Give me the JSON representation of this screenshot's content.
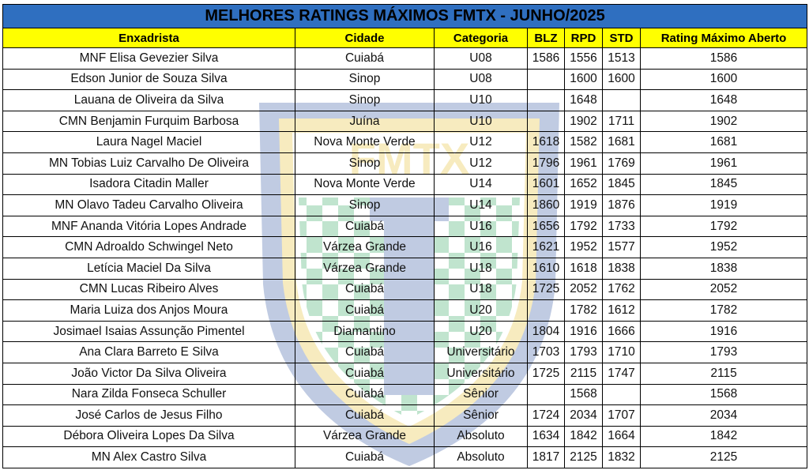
{
  "title": "MELHORES RATINGS MÁXIMOS FMTX - JUNHO/2025",
  "watermark_text": "FMTX",
  "columns": [
    "Enxadrista",
    "Cidade",
    "Categoria",
    "BLZ",
    "RPD",
    "STD",
    "Rating Máximo Aberto"
  ],
  "rows": [
    {
      "name": "MNF Elisa Gevezier Silva",
      "city": "Cuiabá",
      "category": "U08",
      "blz": "1586",
      "rpd": "1556",
      "std": "1513",
      "max": "1586"
    },
    {
      "name": "Edson Junior de Souza Silva",
      "city": "Sinop",
      "category": "U08",
      "blz": "",
      "rpd": "1600",
      "std": "1600",
      "max": "1600"
    },
    {
      "name": "Lauana de Oliveira da Silva",
      "city": "Sinop",
      "category": "U10",
      "blz": "",
      "rpd": "1648",
      "std": "",
      "max": "1648"
    },
    {
      "name": "CMN Benjamin Furquim Barbosa",
      "city": "Juína",
      "category": "U10",
      "blz": "",
      "rpd": "1902",
      "std": "1711",
      "max": "1902"
    },
    {
      "name": "Laura Nagel Maciel",
      "city": "Nova Monte Verde",
      "category": "U12",
      "blz": "1618",
      "rpd": "1582",
      "std": "1681",
      "max": "1681"
    },
    {
      "name": "MN Tobias Luiz Carvalho De Oliveira",
      "city": "Sinop",
      "category": "U12",
      "blz": "1796",
      "rpd": "1961",
      "std": "1769",
      "max": "1961"
    },
    {
      "name": "Isadora Citadin Maller",
      "city": "Nova Monte Verde",
      "category": "U14",
      "blz": "1601",
      "rpd": "1652",
      "std": "1845",
      "max": "1845"
    },
    {
      "name": "MN Olavo Tadeu Carvalho Oliveira",
      "city": "Sinop",
      "category": "U14",
      "blz": "1860",
      "rpd": "1919",
      "std": "1876",
      "max": "1919"
    },
    {
      "name": "MNF Ananda Vitória Lopes Andrade",
      "city": "Cuiabá",
      "category": "U16",
      "blz": "1656",
      "rpd": "1792",
      "std": "1733",
      "max": "1792"
    },
    {
      "name": "CMN Adroaldo Schwingel Neto",
      "city": "Várzea Grande",
      "category": "U16",
      "blz": "1621",
      "rpd": "1952",
      "std": "1577",
      "max": "1952"
    },
    {
      "name": "Letícia Maciel Da Silva",
      "city": "Várzea Grande",
      "category": "U18",
      "blz": "1610",
      "rpd": "1618",
      "std": "1838",
      "max": "1838"
    },
    {
      "name": "CMN Lucas Ribeiro Alves",
      "city": "Cuiabá",
      "category": "U18",
      "blz": "1725",
      "rpd": "2052",
      "std": "1762",
      "max": "2052"
    },
    {
      "name": "Maria Luiza dos Anjos Moura",
      "city": "Cuiabá",
      "category": "U20",
      "blz": "",
      "rpd": "1782",
      "std": "1612",
      "max": "1782"
    },
    {
      "name": "Josimael Isaias Assunção Pimentel",
      "city": "Diamantino",
      "category": "U20",
      "blz": "1804",
      "rpd": "1916",
      "std": "1666",
      "max": "1916"
    },
    {
      "name": "Ana Clara Barreto E Silva",
      "city": "Cuiabá",
      "category": "Universitário",
      "blz": "1703",
      "rpd": "1793",
      "std": "1710",
      "max": "1793"
    },
    {
      "name": "João Victor Da Silva Oliveira",
      "city": "Cuiabá",
      "category": "Universitário",
      "blz": "1725",
      "rpd": "2115",
      "std": "1747",
      "max": "2115"
    },
    {
      "name": "Nara Zilda Fonseca Schuller",
      "city": "Cuiabá",
      "category": "Sênior",
      "blz": "",
      "rpd": "1568",
      "std": "",
      "max": "1568"
    },
    {
      "name": "José Carlos de Jesus Filho",
      "city": "Cuiabá",
      "category": "Sênior",
      "blz": "1724",
      "rpd": "2034",
      "std": "1707",
      "max": "2034"
    },
    {
      "name": "Débora Oliveira Lopes Da Silva",
      "city": "Várzea Grande",
      "category": "Absoluto",
      "blz": "1634",
      "rpd": "1842",
      "std": "1664",
      "max": "1842"
    },
    {
      "name": "MN Alex Castro Silva",
      "city": "Cuiabá",
      "category": "Absoluto",
      "blz": "1817",
      "rpd": "2125",
      "std": "1832",
      "max": "2125"
    }
  ],
  "colors": {
    "title_bg": "#2f6fc0",
    "header_bg": "#ffff00",
    "shield_blue": "#3d5fa8",
    "shield_gold": "#e8c33a",
    "checker_green": "#3fae6a"
  }
}
